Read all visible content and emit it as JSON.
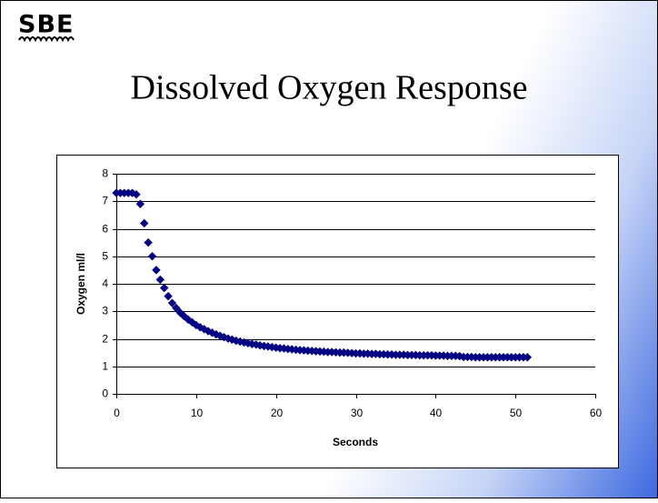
{
  "logo": {
    "text": "SBE"
  },
  "chart_data": {
    "type": "scatter",
    "title": "Dissolved Oxygen Response",
    "x_label": "Seconds",
    "y_label": "Oxygen ml/l",
    "color": "#000080",
    "grid": true,
    "xlim": [
      0,
      60
    ],
    "xticks": [
      0,
      10,
      20,
      30,
      40,
      50,
      60
    ],
    "ylim": [
      0,
      8
    ],
    "yticks": [
      0,
      1,
      2,
      3,
      4,
      5,
      6,
      7,
      8
    ],
    "x": [
      0,
      0.5,
      1,
      1.5,
      2,
      2.5,
      3,
      3.5,
      4,
      4.5,
      5,
      5.5,
      6,
      6.5,
      7,
      7.5,
      8,
      8.5,
      9,
      9.5,
      10,
      10.5,
      11,
      11.5,
      12,
      12.5,
      13,
      13.5,
      14,
      14.5,
      15,
      15.5,
      16,
      16.5,
      17,
      17.5,
      18,
      18.5,
      19,
      19.5,
      20,
      20.5,
      21,
      21.5,
      22,
      22.5,
      23,
      23.5,
      24,
      24.5,
      25,
      25.5,
      26,
      26.5,
      27,
      27.5,
      28,
      28.5,
      29,
      29.5,
      30,
      30.5,
      31,
      31.5,
      32,
      32.5,
      33,
      33.5,
      34,
      34.5,
      35,
      35.5,
      36,
      36.5,
      37,
      37.5,
      38,
      38.5,
      39,
      39.5,
      40,
      40.5,
      41,
      41.5,
      42,
      42.5,
      43,
      43.5,
      44,
      44.5,
      45,
      45.5,
      46,
      46.5,
      47,
      47.5,
      48,
      48.5,
      49,
      49.5,
      50,
      50.5,
      51,
      51.5
    ],
    "values": [
      7.3,
      7.3,
      7.3,
      7.3,
      7.3,
      7.25,
      6.9,
      6.2,
      5.5,
      5.0,
      4.5,
      4.15,
      3.85,
      3.55,
      3.3,
      3.12,
      2.95,
      2.82,
      2.7,
      2.6,
      2.5,
      2.42,
      2.35,
      2.28,
      2.22,
      2.16,
      2.11,
      2.06,
      2.01,
      1.97,
      1.93,
      1.9,
      1.87,
      1.84,
      1.81,
      1.79,
      1.76,
      1.74,
      1.72,
      1.7,
      1.68,
      1.66,
      1.65,
      1.63,
      1.62,
      1.6,
      1.59,
      1.58,
      1.57,
      1.56,
      1.55,
      1.54,
      1.53,
      1.52,
      1.52,
      1.51,
      1.5,
      1.5,
      1.49,
      1.48,
      1.47,
      1.47,
      1.46,
      1.46,
      1.45,
      1.45,
      1.44,
      1.44,
      1.43,
      1.43,
      1.42,
      1.42,
      1.42,
      1.41,
      1.41,
      1.41,
      1.4,
      1.4,
      1.4,
      1.4,
      1.39,
      1.39,
      1.39,
      1.38,
      1.38,
      1.38,
      1.37,
      1.34,
      1.34,
      1.34,
      1.33,
      1.33,
      1.33,
      1.33,
      1.33,
      1.33,
      1.33,
      1.33,
      1.33,
      1.33,
      1.33,
      1.33,
      1.33,
      1.33
    ]
  }
}
